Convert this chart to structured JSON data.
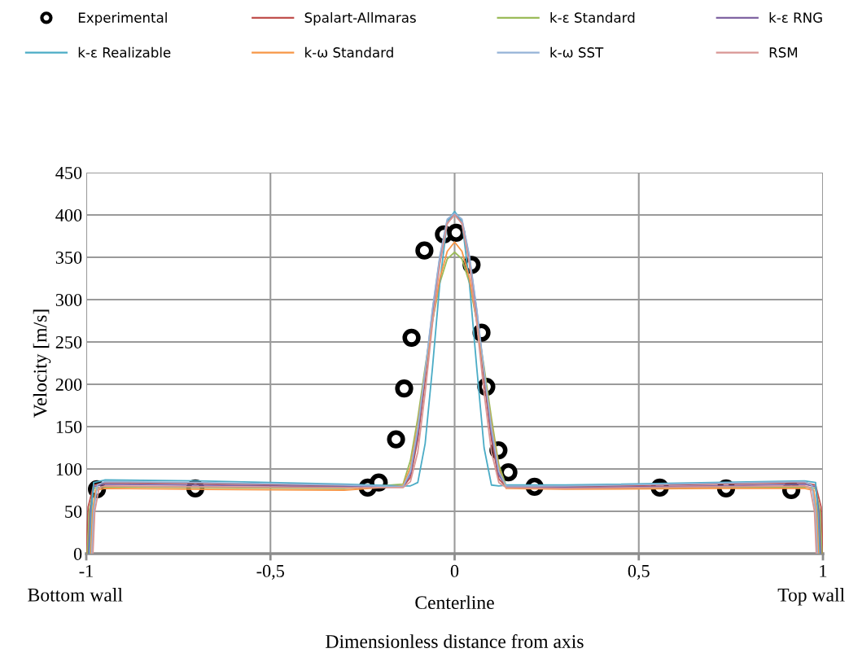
{
  "chart_data": {
    "type": "line",
    "xlabel": "Dimensionless distance from axis",
    "ylabel": "Velocity [m/s]",
    "annotations": [
      "Bottom wall",
      "Centerline",
      "Top wall"
    ],
    "xlim": [
      -1,
      1
    ],
    "xticks": [
      {
        "value": -1,
        "label": "-1"
      },
      {
        "value": -0.5,
        "label": "-0,5"
      },
      {
        "value": 0,
        "label": "0"
      },
      {
        "value": 0.5,
        "label": "0,5"
      },
      {
        "value": 1,
        "label": "1"
      }
    ],
    "ylim": [
      0,
      450
    ],
    "yticks": [
      0,
      50,
      100,
      150,
      200,
      250,
      300,
      350,
      400,
      450
    ],
    "grid": true,
    "legend": "top",
    "series": [
      {
        "name": "Experimental",
        "type": "scatter",
        "color": "#000000",
        "marker": "circle",
        "x": [
          -0.971,
          -0.704,
          -0.236,
          -0.206,
          -0.159,
          -0.137,
          -0.117,
          -0.082,
          -0.029,
          0.004,
          0.046,
          0.073,
          0.086,
          0.119,
          0.146,
          0.217,
          0.557,
          0.737,
          0.914
        ],
        "values": [
          76,
          77,
          78,
          84,
          135,
          195,
          255,
          358,
          377,
          379,
          341,
          261,
          197,
          122,
          96,
          79,
          78,
          77,
          75
        ]
      },
      {
        "name": "Spalart-Allmaras",
        "color": "#c0504d",
        "x": [
          -1,
          -0.995,
          -0.98,
          -0.95,
          -0.7,
          -0.3,
          -0.14,
          -0.12,
          -0.1,
          -0.08,
          -0.06,
          -0.04,
          -0.02,
          0,
          0.02,
          0.04,
          0.06,
          0.08,
          0.1,
          0.12,
          0.14,
          0.3,
          0.7,
          0.95,
          0.98,
          0.995,
          1
        ],
        "values": [
          0,
          55,
          81,
          84,
          83,
          80,
          79,
          90,
          135,
          205,
          280,
          345,
          390,
          401,
          390,
          345,
          280,
          205,
          135,
          88,
          79,
          79,
          82,
          84,
          81,
          55,
          0
        ]
      },
      {
        "name": "k-ε Standard",
        "color": "#9bbb59",
        "x": [
          -0.997,
          -0.992,
          -0.98,
          -0.95,
          -0.7,
          -0.3,
          -0.14,
          -0.12,
          -0.1,
          -0.08,
          -0.06,
          -0.04,
          -0.02,
          0,
          0.02,
          0.04,
          0.06,
          0.08,
          0.1,
          0.12,
          0.14,
          0.3,
          0.7,
          0.95,
          0.98,
          0.992,
          0.997
        ],
        "values": [
          0,
          50,
          77,
          79,
          78,
          77,
          82,
          110,
          160,
          220,
          275,
          320,
          348,
          356,
          348,
          320,
          275,
          220,
          160,
          105,
          80,
          77,
          78,
          79,
          77,
          50,
          0
        ]
      },
      {
        "name": "k-ε RNG",
        "color": "#8064a2",
        "x": [
          -0.994,
          -0.989,
          -0.98,
          -0.95,
          -0.7,
          -0.3,
          -0.14,
          -0.12,
          -0.1,
          -0.08,
          -0.06,
          -0.04,
          -0.02,
          0,
          0.02,
          0.04,
          0.06,
          0.08,
          0.1,
          0.12,
          0.14,
          0.3,
          0.7,
          0.95,
          0.98,
          0.989,
          0.994
        ],
        "values": [
          0,
          50,
          79,
          82,
          81,
          79,
          79,
          94,
          142,
          213,
          287,
          350,
          393,
          403,
          393,
          350,
          287,
          213,
          142,
          93,
          79,
          78,
          80,
          82,
          79,
          50,
          0
        ]
      },
      {
        "name": "k-ε Realizable",
        "color": "#4bacc6",
        "x": [
          -0.991,
          -0.986,
          -0.98,
          -0.95,
          -0.7,
          -0.3,
          -0.14,
          -0.12,
          -0.1,
          -0.08,
          -0.06,
          -0.04,
          -0.02,
          0,
          0.02,
          0.04,
          0.06,
          0.08,
          0.1,
          0.12,
          0.14,
          0.3,
          0.7,
          0.95,
          0.98,
          0.986,
          0.991
        ],
        "values": [
          0,
          50,
          84,
          87,
          86,
          82,
          80,
          80,
          84,
          130,
          220,
          320,
          392,
          404,
          392,
          320,
          220,
          125,
          81,
          80,
          81,
          81,
          84,
          86,
          84,
          50,
          0
        ]
      },
      {
        "name": "k-ω Standard",
        "color": "#f79646",
        "x": [
          -0.988,
          -0.983,
          -0.975,
          -0.95,
          -0.7,
          -0.3,
          -0.14,
          -0.12,
          -0.1,
          -0.08,
          -0.06,
          -0.04,
          -0.02,
          0,
          0.02,
          0.04,
          0.06,
          0.08,
          0.1,
          0.12,
          0.14,
          0.3,
          0.7,
          0.95,
          0.975,
          0.983,
          0.988
        ],
        "values": [
          0,
          50,
          75,
          77,
          76,
          75,
          80,
          102,
          152,
          215,
          275,
          325,
          357,
          368,
          357,
          325,
          275,
          215,
          152,
          100,
          77,
          76,
          77,
          77,
          75,
          50,
          0
        ]
      },
      {
        "name": "k-ω SST",
        "color": "#95b3d7",
        "x": [
          -0.985,
          -0.98,
          -0.97,
          -0.95,
          -0.7,
          -0.3,
          -0.14,
          -0.12,
          -0.1,
          -0.08,
          -0.06,
          -0.04,
          -0.02,
          0,
          0.02,
          0.04,
          0.06,
          0.08,
          0.1,
          0.12,
          0.14,
          0.3,
          0.7,
          0.95,
          0.97,
          0.98,
          0.985
        ],
        "values": [
          0,
          50,
          81,
          85,
          84,
          81,
          79,
          97,
          148,
          216,
          289,
          352,
          395,
          402,
          395,
          352,
          289,
          216,
          148,
          97,
          80,
          80,
          83,
          85,
          81,
          50,
          0
        ]
      },
      {
        "name": "RSM",
        "color": "#d99694",
        "x": [
          -0.982,
          -0.977,
          -0.965,
          -0.95,
          -0.7,
          -0.3,
          -0.14,
          -0.12,
          -0.1,
          -0.08,
          -0.06,
          -0.04,
          -0.02,
          0,
          0.02,
          0.04,
          0.06,
          0.08,
          0.1,
          0.12,
          0.14,
          0.3,
          0.7,
          0.95,
          0.965,
          0.977,
          0.982
        ],
        "values": [
          0,
          50,
          78,
          80,
          79,
          78,
          78,
          85,
          120,
          190,
          272,
          342,
          390,
          400,
          390,
          342,
          272,
          190,
          120,
          84,
          78,
          77,
          79,
          80,
          78,
          50,
          0
        ]
      }
    ]
  }
}
